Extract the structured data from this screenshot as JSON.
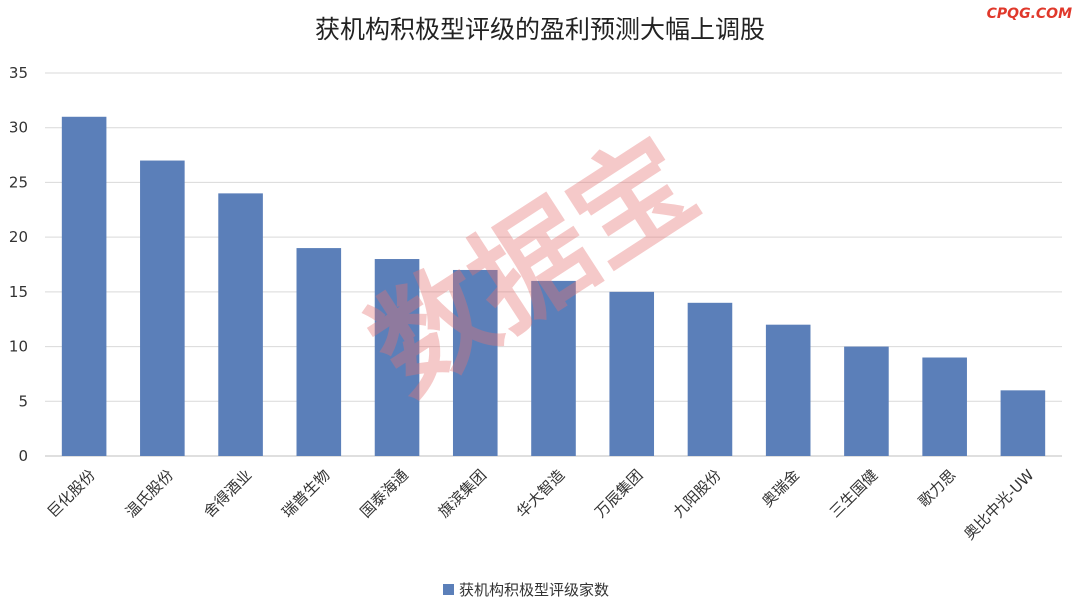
{
  "brand": "CPQG.COM",
  "watermark": "数据宝",
  "chart_data": {
    "type": "bar",
    "title": "获机构积极型评级的盈利预测大幅上调股",
    "categories": [
      "巨化股份",
      "温氏股份",
      "舍得酒业",
      "瑞普生物",
      "国泰海通",
      "旗滨集团",
      "华大智造",
      "万辰集团",
      "九阳股份",
      "奥瑞金",
      "三生国健",
      "歌力思",
      "奥比中光-UW"
    ],
    "series": [
      {
        "name": "获机构积极型评级家数",
        "values": [
          31,
          27,
          24,
          19,
          18,
          17,
          16,
          15,
          14,
          12,
          10,
          9,
          6
        ],
        "color": "#5b7fb9"
      }
    ],
    "ylim": [
      0,
      35
    ],
    "yticks": [
      0,
      5,
      10,
      15,
      20,
      25,
      30,
      35
    ],
    "grid": true,
    "legend": "bottom",
    "xlabel": "",
    "ylabel": ""
  }
}
